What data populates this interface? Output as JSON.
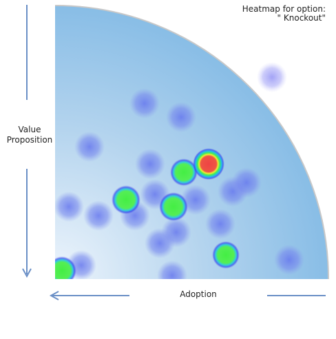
{
  "title": "Heatmap for option:",
  "subtitle": "\" Knockout\"",
  "y_label": [
    "Value",
    "Proposition"
  ],
  "x_label": "Adoption"
}
